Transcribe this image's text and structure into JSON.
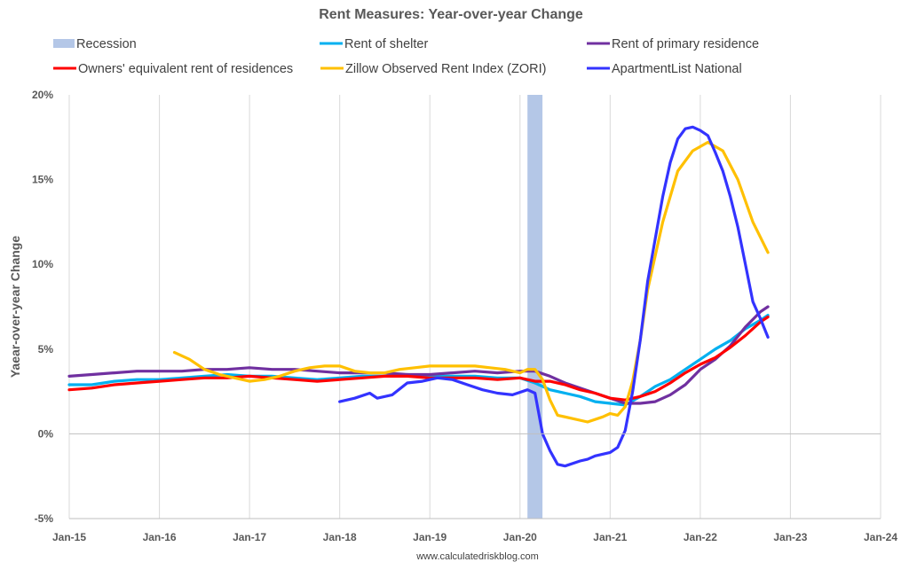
{
  "chart_data": {
    "type": "line",
    "title": "Rent Measures: Year-over-year Change",
    "ylabel": "Yaear-over-year Change",
    "xlabel": "",
    "footer": "www.calculatedriskblog.com",
    "ylim": [
      -5,
      20
    ],
    "yticks": [
      -5,
      0,
      5,
      10,
      15,
      20
    ],
    "ytick_labels": [
      "-5%",
      "0%",
      "5%",
      "10%",
      "15%",
      "20%"
    ],
    "xlim": [
      "2015-01",
      "2024-01"
    ],
    "xticks": [
      "2015-01",
      "2016-01",
      "2017-01",
      "2018-01",
      "2019-01",
      "2020-01",
      "2021-01",
      "2022-01",
      "2023-01",
      "2024-01"
    ],
    "xtick_labels": [
      "Jan-15",
      "Jan-16",
      "Jan-17",
      "Jan-18",
      "Jan-19",
      "Jan-20",
      "Jan-21",
      "Jan-22",
      "Jan-23",
      "Jan-24"
    ],
    "grid": "vertical",
    "legend_position": "top",
    "recession": {
      "name": "Recession",
      "start": "2020-02",
      "end": "2020-04",
      "color": "#b4c7e7"
    },
    "series": [
      {
        "name": "Rent of shelter",
        "color": "#00b0f0",
        "points": [
          [
            "2015-01",
            2.9
          ],
          [
            "2015-04",
            2.9
          ],
          [
            "2015-07",
            3.1
          ],
          [
            "2015-10",
            3.2
          ],
          [
            "2016-01",
            3.2
          ],
          [
            "2016-04",
            3.3
          ],
          [
            "2016-07",
            3.4
          ],
          [
            "2016-10",
            3.5
          ],
          [
            "2017-01",
            3.4
          ],
          [
            "2017-04",
            3.4
          ],
          [
            "2017-07",
            3.3
          ],
          [
            "2017-10",
            3.2
          ],
          [
            "2018-01",
            3.3
          ],
          [
            "2018-04",
            3.4
          ],
          [
            "2018-07",
            3.4
          ],
          [
            "2018-10",
            3.5
          ],
          [
            "2019-01",
            3.4
          ],
          [
            "2019-04",
            3.4
          ],
          [
            "2019-07",
            3.4
          ],
          [
            "2019-10",
            3.3
          ],
          [
            "2020-01",
            3.3
          ],
          [
            "2020-03",
            3.0
          ],
          [
            "2020-05",
            2.6
          ],
          [
            "2020-07",
            2.4
          ],
          [
            "2020-09",
            2.2
          ],
          [
            "2020-11",
            1.9
          ],
          [
            "2021-01",
            1.8
          ],
          [
            "2021-03",
            1.7
          ],
          [
            "2021-05",
            2.2
          ],
          [
            "2021-07",
            2.8
          ],
          [
            "2021-09",
            3.2
          ],
          [
            "2021-11",
            3.8
          ],
          [
            "2022-01",
            4.4
          ],
          [
            "2022-03",
            5.0
          ],
          [
            "2022-05",
            5.5
          ],
          [
            "2022-07",
            6.2
          ],
          [
            "2022-09",
            6.7
          ],
          [
            "2022-10",
            7.0
          ]
        ]
      },
      {
        "name": "Rent of primary residence",
        "color": "#7030a0",
        "points": [
          [
            "2015-01",
            3.4
          ],
          [
            "2015-04",
            3.5
          ],
          [
            "2015-07",
            3.6
          ],
          [
            "2015-10",
            3.7
          ],
          [
            "2016-01",
            3.7
          ],
          [
            "2016-04",
            3.7
          ],
          [
            "2016-07",
            3.8
          ],
          [
            "2016-10",
            3.8
          ],
          [
            "2017-01",
            3.9
          ],
          [
            "2017-04",
            3.8
          ],
          [
            "2017-07",
            3.8
          ],
          [
            "2017-10",
            3.7
          ],
          [
            "2018-01",
            3.6
          ],
          [
            "2018-04",
            3.6
          ],
          [
            "2018-07",
            3.6
          ],
          [
            "2018-10",
            3.5
          ],
          [
            "2019-01",
            3.5
          ],
          [
            "2019-04",
            3.6
          ],
          [
            "2019-07",
            3.7
          ],
          [
            "2019-10",
            3.6
          ],
          [
            "2020-01",
            3.7
          ],
          [
            "2020-03",
            3.7
          ],
          [
            "2020-05",
            3.4
          ],
          [
            "2020-07",
            3.0
          ],
          [
            "2020-09",
            2.7
          ],
          [
            "2020-11",
            2.4
          ],
          [
            "2021-01",
            2.1
          ],
          [
            "2021-03",
            1.8
          ],
          [
            "2021-05",
            1.8
          ],
          [
            "2021-07",
            1.9
          ],
          [
            "2021-09",
            2.3
          ],
          [
            "2021-11",
            2.9
          ],
          [
            "2022-01",
            3.8
          ],
          [
            "2022-03",
            4.4
          ],
          [
            "2022-05",
            5.2
          ],
          [
            "2022-07",
            6.3
          ],
          [
            "2022-09",
            7.2
          ],
          [
            "2022-10",
            7.5
          ]
        ]
      },
      {
        "name": "Owners' equivalent rent of residences",
        "color": "#ff0000",
        "points": [
          [
            "2015-01",
            2.6
          ],
          [
            "2015-04",
            2.7
          ],
          [
            "2015-07",
            2.9
          ],
          [
            "2015-10",
            3.0
          ],
          [
            "2016-01",
            3.1
          ],
          [
            "2016-04",
            3.2
          ],
          [
            "2016-07",
            3.3
          ],
          [
            "2016-10",
            3.3
          ],
          [
            "2017-01",
            3.4
          ],
          [
            "2017-04",
            3.3
          ],
          [
            "2017-07",
            3.2
          ],
          [
            "2017-10",
            3.1
          ],
          [
            "2018-01",
            3.2
          ],
          [
            "2018-04",
            3.3
          ],
          [
            "2018-07",
            3.4
          ],
          [
            "2018-10",
            3.4
          ],
          [
            "2019-01",
            3.3
          ],
          [
            "2019-04",
            3.3
          ],
          [
            "2019-07",
            3.3
          ],
          [
            "2019-10",
            3.2
          ],
          [
            "2020-01",
            3.3
          ],
          [
            "2020-03",
            3.1
          ],
          [
            "2020-05",
            3.1
          ],
          [
            "2020-07",
            2.9
          ],
          [
            "2020-09",
            2.6
          ],
          [
            "2020-11",
            2.4
          ],
          [
            "2021-01",
            2.1
          ],
          [
            "2021-03",
            2.0
          ],
          [
            "2021-05",
            2.2
          ],
          [
            "2021-07",
            2.5
          ],
          [
            "2021-09",
            3.0
          ],
          [
            "2021-11",
            3.6
          ],
          [
            "2022-01",
            4.1
          ],
          [
            "2022-03",
            4.5
          ],
          [
            "2022-05",
            5.1
          ],
          [
            "2022-07",
            5.8
          ],
          [
            "2022-09",
            6.6
          ],
          [
            "2022-10",
            6.9
          ]
        ]
      },
      {
        "name": "Zillow Observed Rent Index (ZORI)",
        "color": "#ffc000",
        "points": [
          [
            "2016-03",
            4.8
          ],
          [
            "2016-05",
            4.4
          ],
          [
            "2016-07",
            3.8
          ],
          [
            "2016-09",
            3.5
          ],
          [
            "2016-11",
            3.3
          ],
          [
            "2017-01",
            3.1
          ],
          [
            "2017-03",
            3.2
          ],
          [
            "2017-05",
            3.4
          ],
          [
            "2017-07",
            3.7
          ],
          [
            "2017-09",
            3.9
          ],
          [
            "2017-11",
            4.0
          ],
          [
            "2018-01",
            4.0
          ],
          [
            "2018-03",
            3.7
          ],
          [
            "2018-05",
            3.6
          ],
          [
            "2018-07",
            3.6
          ],
          [
            "2018-09",
            3.8
          ],
          [
            "2018-11",
            3.9
          ],
          [
            "2019-01",
            4.0
          ],
          [
            "2019-03",
            4.0
          ],
          [
            "2019-05",
            4.0
          ],
          [
            "2019-07",
            4.0
          ],
          [
            "2019-09",
            3.9
          ],
          [
            "2019-11",
            3.8
          ],
          [
            "2020-01",
            3.6
          ],
          [
            "2020-02",
            3.8
          ],
          [
            "2020-03",
            3.8
          ],
          [
            "2020-04",
            3.2
          ],
          [
            "2020-05",
            2.0
          ],
          [
            "2020-06",
            1.1
          ],
          [
            "2020-08",
            0.9
          ],
          [
            "2020-10",
            0.7
          ],
          [
            "2020-12",
            1.0
          ],
          [
            "2021-01",
            1.2
          ],
          [
            "2021-02",
            1.1
          ],
          [
            "2021-03",
            1.6
          ],
          [
            "2021-04",
            3.1
          ],
          [
            "2021-05",
            5.5
          ],
          [
            "2021-06",
            8.5
          ],
          [
            "2021-08",
            12.5
          ],
          [
            "2021-10",
            15.5
          ],
          [
            "2021-12",
            16.7
          ],
          [
            "2022-02",
            17.2
          ],
          [
            "2022-04",
            16.7
          ],
          [
            "2022-06",
            15.0
          ],
          [
            "2022-08",
            12.5
          ],
          [
            "2022-10",
            10.7
          ]
        ]
      },
      {
        "name": "ApartmentList National",
        "color": "#3333ff",
        "points": [
          [
            "2018-01",
            1.9
          ],
          [
            "2018-03",
            2.1
          ],
          [
            "2018-05",
            2.4
          ],
          [
            "2018-06",
            2.1
          ],
          [
            "2018-08",
            2.3
          ],
          [
            "2018-10",
            3.0
          ],
          [
            "2018-12",
            3.1
          ],
          [
            "2019-02",
            3.3
          ],
          [
            "2019-04",
            3.2
          ],
          [
            "2019-06",
            2.9
          ],
          [
            "2019-08",
            2.6
          ],
          [
            "2019-10",
            2.4
          ],
          [
            "2019-12",
            2.3
          ],
          [
            "2020-02",
            2.6
          ],
          [
            "2020-03",
            2.4
          ],
          [
            "2020-04",
            0.0
          ],
          [
            "2020-05",
            -1.0
          ],
          [
            "2020-06",
            -1.8
          ],
          [
            "2020-07",
            -1.9
          ],
          [
            "2020-09",
            -1.6
          ],
          [
            "2020-10",
            -1.5
          ],
          [
            "2020-11",
            -1.3
          ],
          [
            "2021-01",
            -1.1
          ],
          [
            "2021-02",
            -0.8
          ],
          [
            "2021-03",
            0.2
          ],
          [
            "2021-04",
            2.5
          ],
          [
            "2021-05",
            5.5
          ],
          [
            "2021-06",
            9.0
          ],
          [
            "2021-07",
            11.5
          ],
          [
            "2021-08",
            14.0
          ],
          [
            "2021-09",
            16.0
          ],
          [
            "2021-10",
            17.4
          ],
          [
            "2021-11",
            18.0
          ],
          [
            "2021-12",
            18.1
          ],
          [
            "2022-01",
            17.9
          ],
          [
            "2022-02",
            17.6
          ],
          [
            "2022-03",
            16.6
          ],
          [
            "2022-04",
            15.5
          ],
          [
            "2022-05",
            14.0
          ],
          [
            "2022-06",
            12.2
          ],
          [
            "2022-07",
            10.0
          ],
          [
            "2022-08",
            7.8
          ],
          [
            "2022-09",
            6.8
          ],
          [
            "2022-10",
            5.7
          ]
        ]
      }
    ]
  }
}
